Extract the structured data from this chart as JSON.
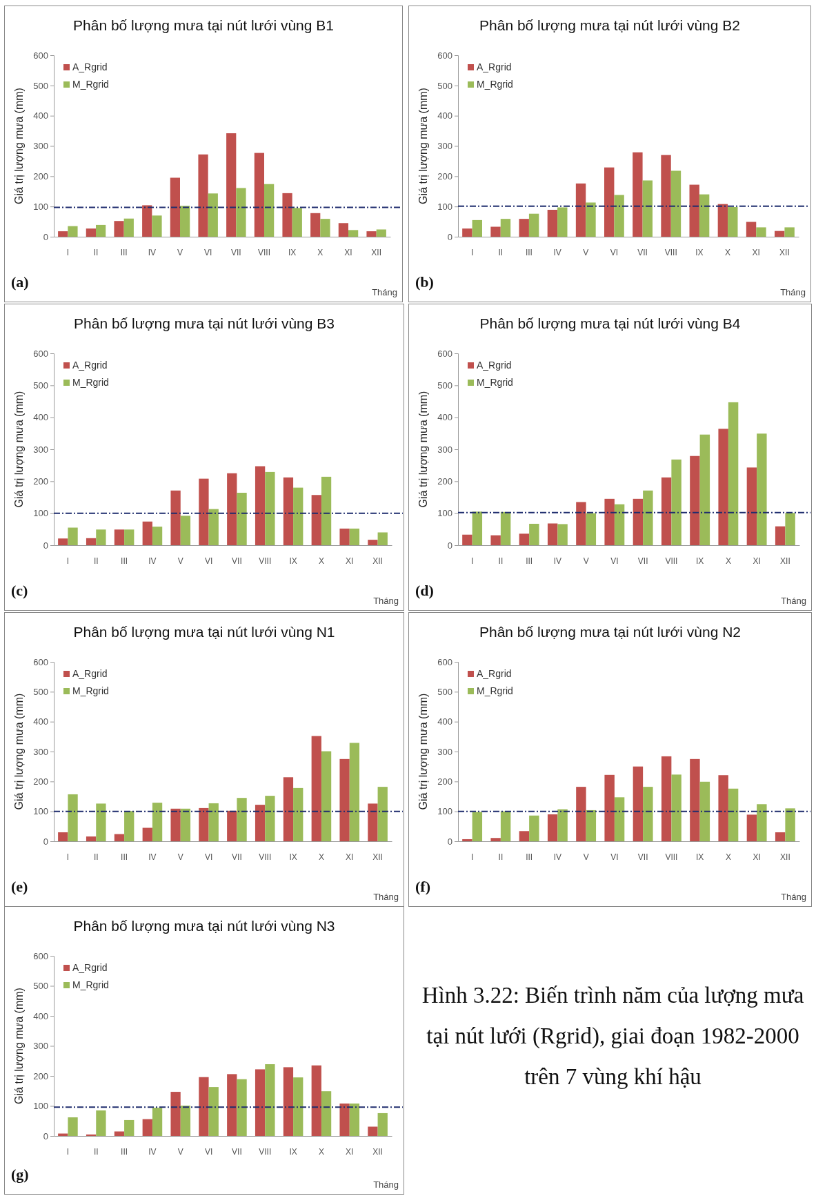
{
  "chart_data": [
    {
      "type": "bar",
      "title": "Phân bố lượng mưa tại nút lưới vùng B1",
      "ylabel": "Giá trị lượng mưa (mm)",
      "xlabel": "Tháng",
      "annotations": [
        "(a)"
      ],
      "categories": [
        "I",
        "II",
        "III",
        "IV",
        "V",
        "VI",
        "VII",
        "VIII",
        "IX",
        "X",
        "XI",
        "XII"
      ],
      "series": [
        {
          "name": "A_Rgrid",
          "color": "#c0504d",
          "values": [
            18,
            27,
            52,
            104,
            195,
            272,
            342,
            277,
            144,
            78,
            45,
            18
          ]
        },
        {
          "name": "M_Rgrid",
          "color": "#9bbb59",
          "values": [
            35,
            39,
            60,
            70,
            102,
            143,
            161,
            174,
            95,
            59,
            22,
            24
          ]
        }
      ],
      "ylim": [
        0,
        600
      ],
      "yticks": [
        0,
        100,
        200,
        300,
        400,
        500,
        600
      ],
      "legend": "top left",
      "ref_lines": [
        {
          "axis": "y",
          "value": 97,
          "color": "#1f2d6e",
          "line_style": "dashed"
        }
      ]
    },
    {
      "type": "bar",
      "title": "Phân bố lượng mưa tại nút lưới vùng B2",
      "ylabel": "Giá trị lượng mưa (mm)",
      "xlabel": "Tháng",
      "annotations": [
        "(b)"
      ],
      "categories": [
        "I",
        "II",
        "III",
        "IV",
        "V",
        "VI",
        "VII",
        "VIII",
        "IX",
        "X",
        "XI",
        "XII"
      ],
      "series": [
        {
          "name": "A_Rgrid",
          "color": "#c0504d",
          "values": [
            27,
            33,
            59,
            89,
            176,
            229,
            279,
            270,
            172,
            108,
            49,
            19
          ]
        },
        {
          "name": "M_Rgrid",
          "color": "#9bbb59",
          "values": [
            55,
            59,
            76,
            97,
            113,
            138,
            186,
            218,
            140,
            98,
            31,
            31
          ]
        }
      ],
      "ylim": [
        0,
        600
      ],
      "yticks": [
        0,
        100,
        200,
        300,
        400,
        500,
        600
      ],
      "legend": "top left",
      "ref_lines": [
        {
          "axis": "y",
          "value": 101,
          "color": "#1f2d6e",
          "line_style": "dashed"
        }
      ]
    },
    {
      "type": "bar",
      "title": "Phân bố lượng mưa tại nút lưới vùng B3",
      "ylabel": "Giá trị lượng mưa (mm)",
      "xlabel": "Tháng",
      "annotations": [
        "(c)"
      ],
      "categories": [
        "I",
        "II",
        "III",
        "IV",
        "V",
        "VI",
        "VII",
        "VIII",
        "IX",
        "X",
        "XI",
        "XII"
      ],
      "series": [
        {
          "name": "A_Rgrid",
          "color": "#c0504d",
          "values": [
            21,
            22,
            49,
            74,
            171,
            208,
            225,
            247,
            212,
            157,
            52,
            17
          ]
        },
        {
          "name": "M_Rgrid",
          "color": "#9bbb59",
          "values": [
            55,
            49,
            49,
            58,
            92,
            113,
            164,
            229,
            180,
            214,
            52,
            40
          ]
        }
      ],
      "ylim": [
        0,
        600
      ],
      "yticks": [
        0,
        100,
        200,
        300,
        400,
        500,
        600
      ],
      "legend": "top left",
      "ref_lines": [
        {
          "axis": "y",
          "value": 100,
          "color": "#1f2d6e",
          "line_style": "dashed"
        }
      ]
    },
    {
      "type": "bar",
      "title": "Phân bố lượng mưa tại nút lưới vùng B4",
      "ylabel": "Giá trị lượng mưa (mm)",
      "xlabel": "Tháng",
      "annotations": [
        "(d)"
      ],
      "categories": [
        "I",
        "II",
        "III",
        "IV",
        "V",
        "VI",
        "VII",
        "VIII",
        "IX",
        "X",
        "XI",
        "XII"
      ],
      "series": [
        {
          "name": "A_Rgrid",
          "color": "#c0504d",
          "values": [
            33,
            31,
            36,
            68,
            135,
            145,
            145,
            212,
            279,
            364,
            243,
            59
          ]
        },
        {
          "name": "M_Rgrid",
          "color": "#9bbb59",
          "values": [
            105,
            104,
            67,
            66,
            100,
            128,
            171,
            268,
            346,
            447,
            349,
            101
          ]
        }
      ],
      "ylim": [
        0,
        600
      ],
      "yticks": [
        0,
        100,
        200,
        300,
        400,
        500,
        600
      ],
      "legend": "top left",
      "ref_lines": [
        {
          "axis": "y",
          "value": 102,
          "color": "#1f2d6e",
          "line_style": "dashed"
        }
      ]
    },
    {
      "type": "bar",
      "title": "Phân bố lượng mưa tại nút lưới vùng N1",
      "ylabel": "Giá trị lượng mưa (mm)",
      "xlabel": "Tháng",
      "annotations": [
        "(e)"
      ],
      "categories": [
        "I",
        "II",
        "III",
        "IV",
        "V",
        "VI",
        "VII",
        "VIII",
        "IX",
        "X",
        "XI",
        "XII"
      ],
      "series": [
        {
          "name": "A_Rgrid",
          "color": "#c0504d",
          "values": [
            30,
            16,
            24,
            45,
            109,
            111,
            102,
            122,
            214,
            352,
            275,
            126
          ]
        },
        {
          "name": "M_Rgrid",
          "color": "#9bbb59",
          "values": [
            157,
            126,
            101,
            129,
            109,
            127,
            145,
            152,
            178,
            301,
            329,
            182
          ]
        }
      ],
      "ylim": [
        0,
        600
      ],
      "yticks": [
        0,
        100,
        200,
        300,
        400,
        500,
        600
      ],
      "legend": "top left",
      "ref_lines": [
        {
          "axis": "y",
          "value": 100,
          "color": "#1f2d6e",
          "line_style": "dashed"
        }
      ]
    },
    {
      "type": "bar",
      "title": "Phân bố lượng mưa tại nút lưới vùng N2",
      "ylabel": "Giá trị lượng mưa (mm)",
      "xlabel": "Tháng",
      "annotations": [
        "(f)"
      ],
      "categories": [
        "I",
        "II",
        "III",
        "IV",
        "V",
        "VI",
        "VII",
        "VIII",
        "IX",
        "X",
        "XI",
        "XII"
      ],
      "series": [
        {
          "name": "A_Rgrid",
          "color": "#c0504d",
          "values": [
            7,
            11,
            34,
            90,
            182,
            222,
            250,
            284,
            275,
            221,
            89,
            30
          ]
        },
        {
          "name": "M_Rgrid",
          "color": "#9bbb59",
          "values": [
            98,
            100,
            86,
            107,
            104,
            147,
            182,
            223,
            199,
            176,
            124,
            110
          ]
        }
      ],
      "ylim": [
        0,
        600
      ],
      "yticks": [
        0,
        100,
        200,
        300,
        400,
        500,
        600
      ],
      "legend": "top left",
      "ref_lines": [
        {
          "axis": "y",
          "value": 100,
          "color": "#1f2d6e",
          "line_style": "dashed"
        }
      ]
    },
    {
      "type": "bar",
      "title": "Phân bố lượng mưa tại nút lưới vùng N3",
      "ylabel": "Giá trị lượng mưa (mm)",
      "xlabel": "Tháng",
      "annotations": [
        "(g)"
      ],
      "categories": [
        "I",
        "II",
        "III",
        "IV",
        "V",
        "VI",
        "VII",
        "VIII",
        "IX",
        "X",
        "XI",
        "XII"
      ],
      "series": [
        {
          "name": "A_Rgrid",
          "color": "#c0504d",
          "values": [
            8,
            5,
            15,
            56,
            147,
            196,
            206,
            222,
            229,
            235,
            108,
            31
          ]
        },
        {
          "name": "M_Rgrid",
          "color": "#9bbb59",
          "values": [
            62,
            85,
            53,
            94,
            101,
            163,
            189,
            239,
            195,
            149,
            108,
            76
          ]
        }
      ],
      "ylim": [
        0,
        600
      ],
      "yticks": [
        0,
        100,
        200,
        300,
        400,
        500,
        600
      ],
      "legend": "top left",
      "ref_lines": [
        {
          "axis": "y",
          "value": 96,
          "color": "#1f2d6e",
          "line_style": "dashed"
        }
      ]
    },
    {
      "type": "other",
      "title": "Hình 3.22: Biến trình năm của lượng mưa tại nút lưới (Rgrid), giai đoạn 1982-2000 trên 7 vùng khí hậu"
    }
  ]
}
